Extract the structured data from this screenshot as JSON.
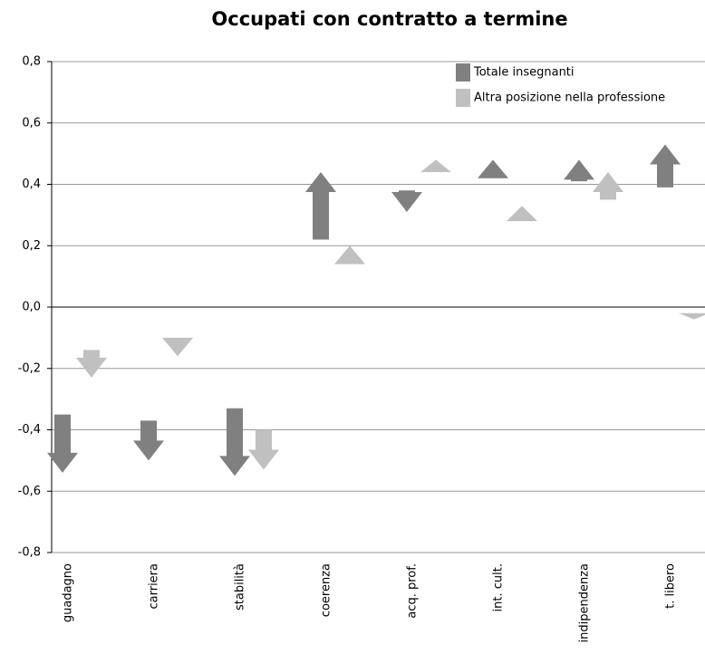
{
  "chart_data": {
    "type": "arrow",
    "title": "Occupati con contratto a termine",
    "categories": [
      "guadagno",
      "carriera",
      "stabilità",
      "coerenza",
      "acq. prof.",
      "int. cult.",
      "indipendenza",
      "t. libero"
    ],
    "series": [
      {
        "name": "Totale insegnanti",
        "color": "#808080",
        "start": [
          -0.35,
          -0.37,
          -0.33,
          0.22,
          0.38,
          0.42,
          0.41,
          0.39
        ],
        "values": [
          -0.54,
          -0.5,
          -0.55,
          0.44,
          0.31,
          0.48,
          0.48,
          0.53
        ]
      },
      {
        "name": "Altra posizione nella professione",
        "color": "#c0c0c0",
        "start": [
          -0.14,
          -0.1,
          -0.4,
          0.14,
          0.44,
          0.28,
          0.35,
          -0.02
        ],
        "values": [
          -0.23,
          -0.16,
          -0.53,
          0.2,
          0.48,
          0.33,
          0.44,
          -0.04
        ]
      }
    ],
    "ylim": [
      -0.8,
      0.8
    ],
    "yticks": [
      {
        "value": -0.8,
        "label": "-0,8"
      },
      {
        "value": -0.6,
        "label": "-0,6"
      },
      {
        "value": -0.4,
        "label": "-0,4"
      },
      {
        "value": -0.2,
        "label": "-0,2"
      },
      {
        "value": 0,
        "label": "0,0"
      },
      {
        "value": 0.2,
        "label": "0,2"
      },
      {
        "value": 0.4,
        "label": "0,4"
      },
      {
        "value": 0.6,
        "label": "0,6"
      },
      {
        "value": 0.8,
        "label": "0,8"
      }
    ],
    "grid": true,
    "legend": "top-right"
  }
}
